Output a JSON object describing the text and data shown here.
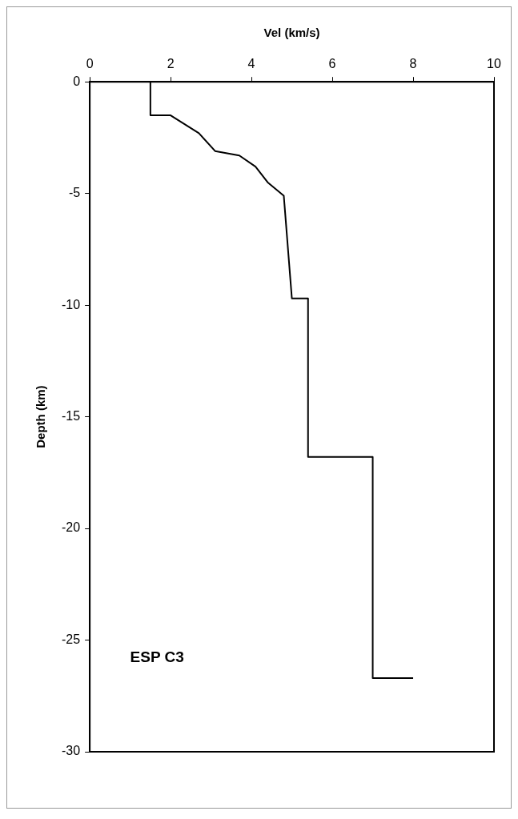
{
  "chart_data": {
    "type": "line",
    "xlabel": "Vel (km/s)",
    "ylabel": "Depth (km)",
    "x": [
      1.5,
      1.5,
      2.0,
      2.7,
      3.1,
      3.7,
      4.1,
      4.4,
      4.8,
      5.0,
      5.4,
      5.4,
      7.0,
      7.0,
      8.0
    ],
    "values": [
      0,
      -1.5,
      -1.5,
      -2.3,
      -3.1,
      -3.3,
      -3.8,
      -4.5,
      -5.1,
      -9.7,
      -9.7,
      -16.8,
      -16.8,
      -26.7,
      -26.7
    ],
    "color": "#000000",
    "marker": "none",
    "line_style": "solid",
    "xlim": [
      0,
      10
    ],
    "xticks": [
      0,
      2,
      4,
      6,
      8,
      10
    ],
    "ylim": [
      -30,
      0
    ],
    "yticks": [
      -30,
      -25,
      -20,
      -15,
      -10,
      -5,
      0
    ],
    "grid": false,
    "legend": false,
    "annotations": [
      "ESP C3"
    ]
  }
}
